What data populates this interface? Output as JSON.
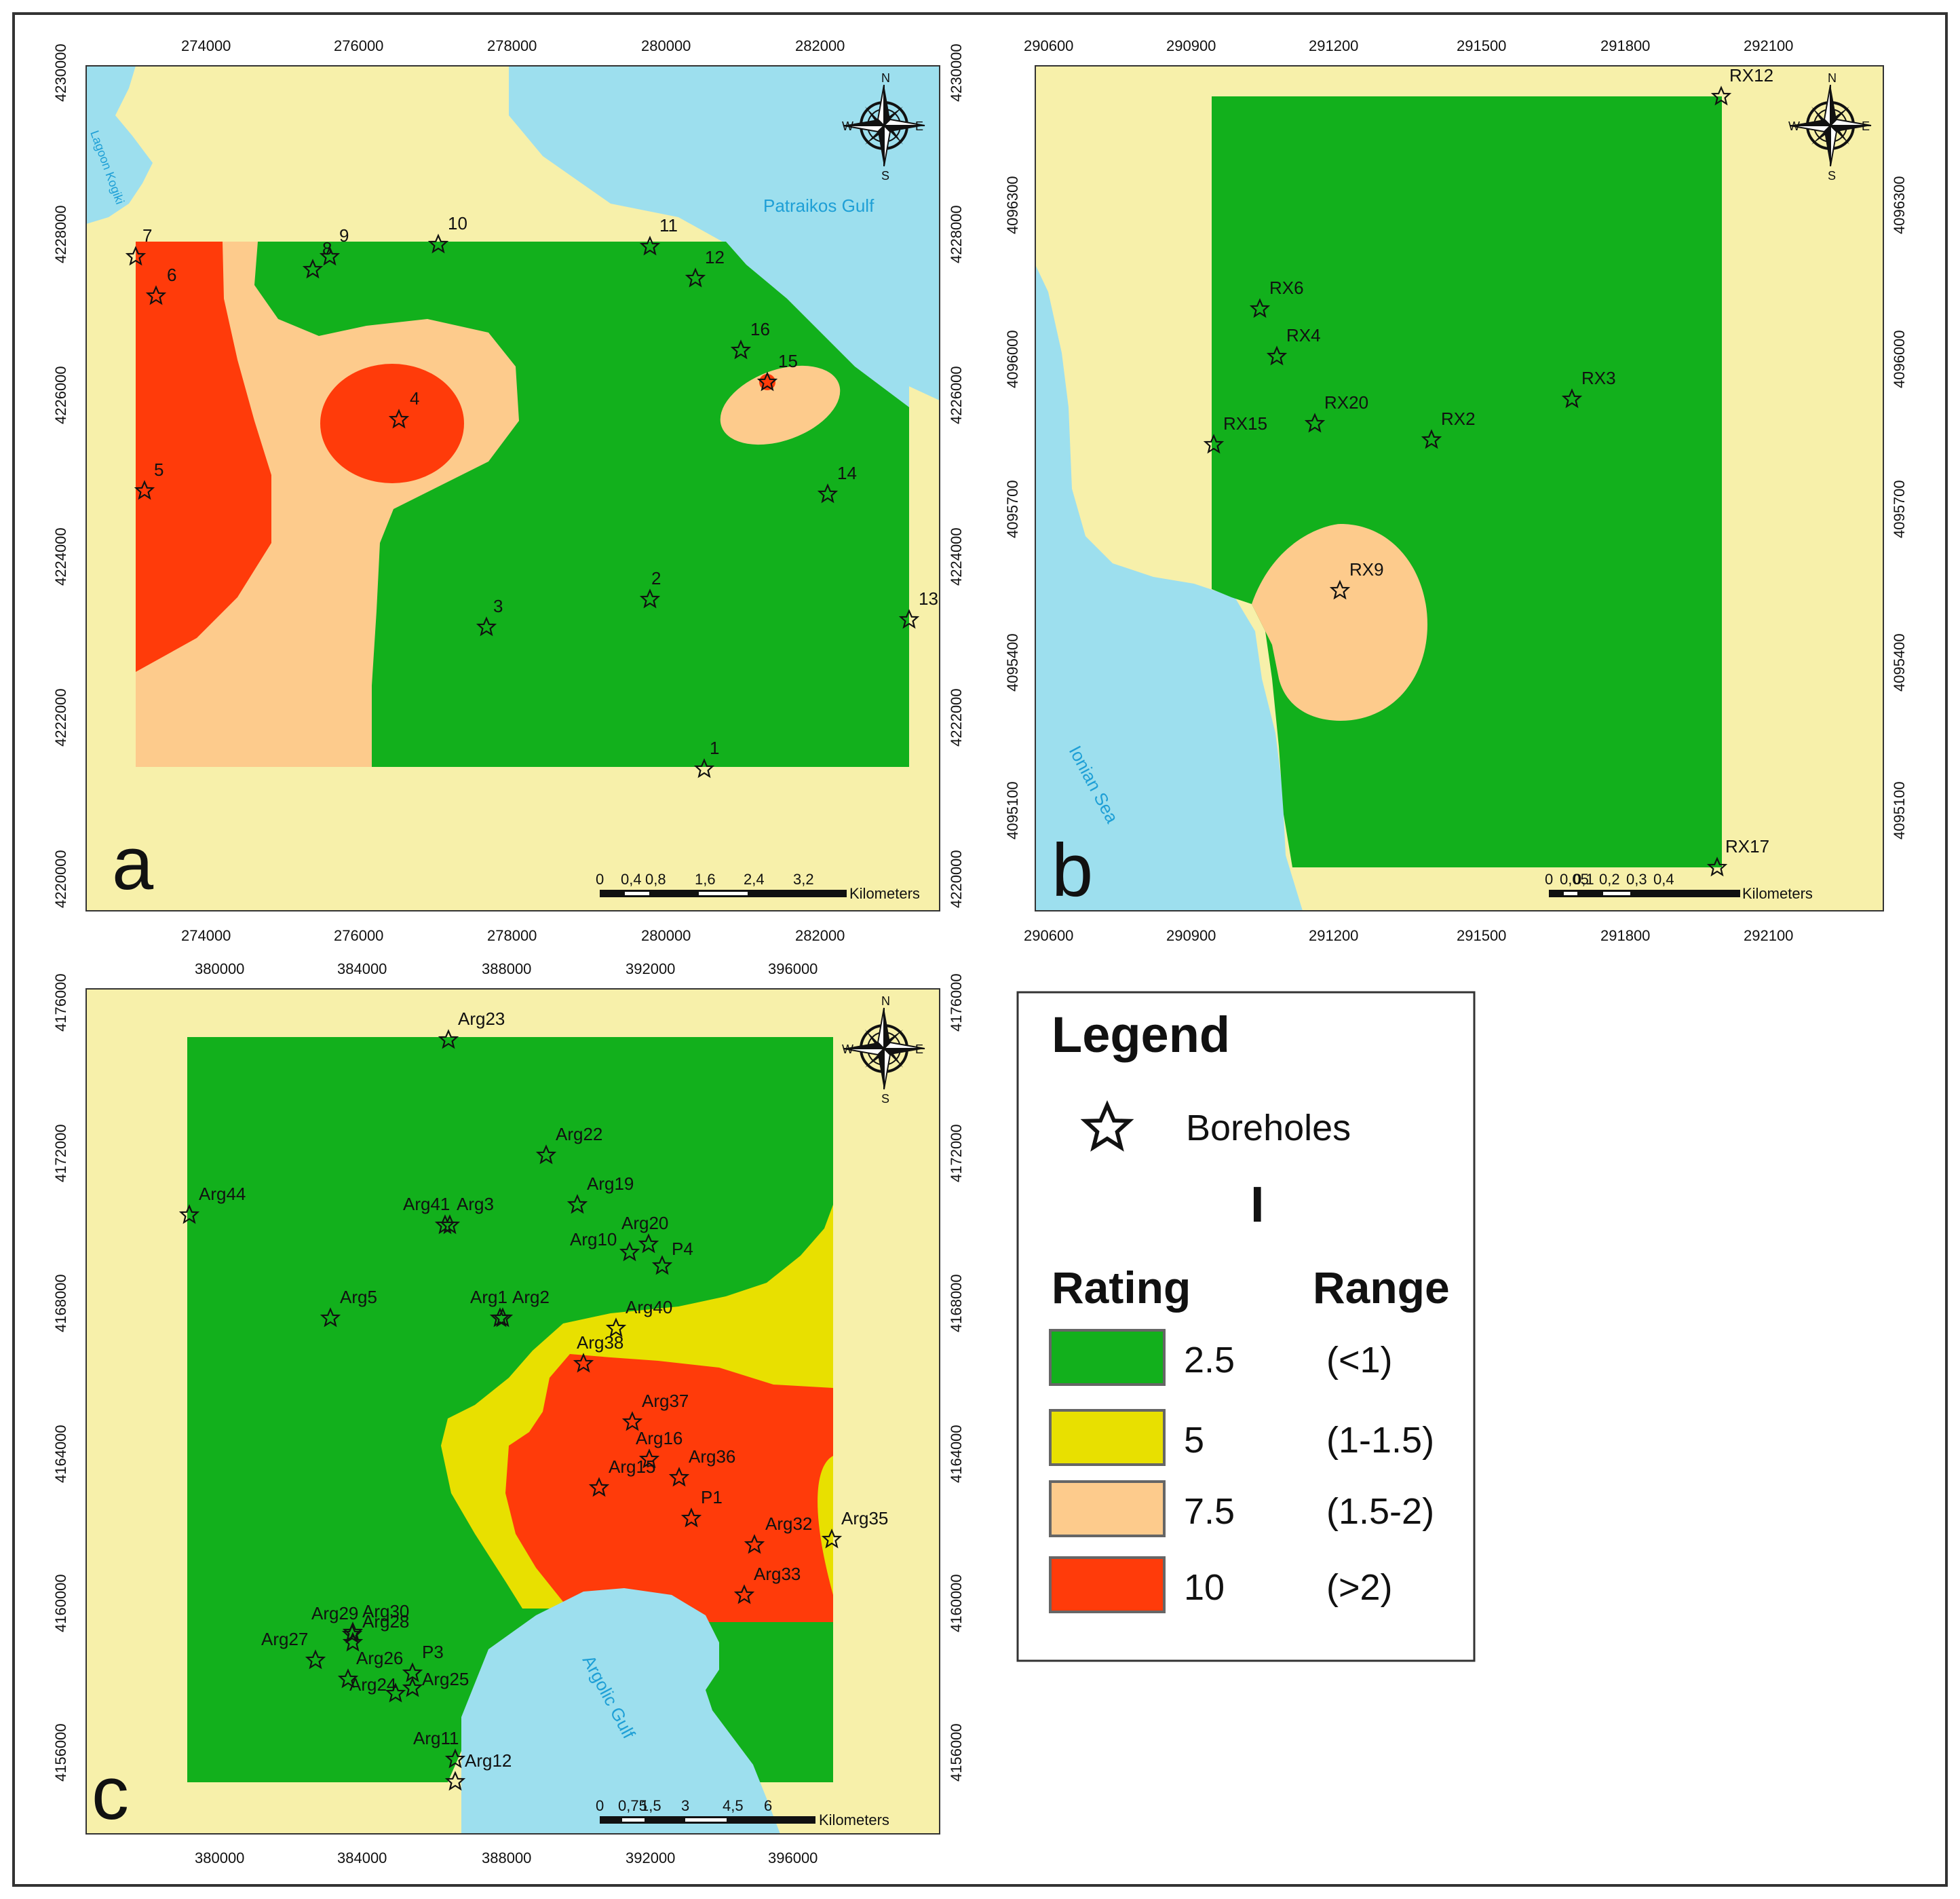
{
  "colors": {
    "land": "#f7f0aa",
    "water": "#9ddfee",
    "green": "#12b01c",
    "yellow": "#e8e000",
    "orange": "#fdcb8c",
    "red": "#ff3b0a",
    "water_label": "#1e9fd6"
  },
  "panels": {
    "a": {
      "letter": "a",
      "x_ticks": [
        "274000",
        "276000",
        "278000",
        "280000",
        "282000"
      ],
      "y_ticks": [
        "4220000",
        "4222000",
        "4224000",
        "4226000",
        "4228000",
        "4230000"
      ],
      "water_labels": [
        "Patraikos Gulf",
        "Lagoon Kogiki"
      ],
      "boreholes": [
        "1",
        "2",
        "3",
        "4",
        "5",
        "6",
        "7",
        "8",
        "9",
        "10",
        "11",
        "12",
        "13",
        "14",
        "15",
        "16"
      ],
      "scale_labels": [
        "0",
        "0,4",
        "0,8",
        "1,6",
        "2,4",
        "3,2"
      ],
      "scale_unit": "Kilometers",
      "compass": {
        "n": "N",
        "s": "S",
        "e": "E",
        "w": "W"
      }
    },
    "b": {
      "letter": "b",
      "x_ticks": [
        "290600",
        "290900",
        "291200",
        "291500",
        "291800",
        "292100"
      ],
      "y_ticks": [
        "4095100",
        "4095400",
        "4095700",
        "4096000",
        "4096300"
      ],
      "water_labels": [
        "Ionian Sea"
      ],
      "boreholes": [
        "RX12",
        "RX6",
        "RX4",
        "RX3",
        "RX20",
        "RX15",
        "RX2",
        "RX9",
        "RX17"
      ],
      "scale_labels": [
        "0",
        "0,05",
        "0,1",
        "0,2",
        "0,3",
        "0,4"
      ],
      "scale_unit": "Kilometers",
      "compass": {
        "n": "N",
        "s": "S",
        "e": "E",
        "w": "W"
      }
    },
    "c": {
      "letter": "c",
      "x_ticks": [
        "380000",
        "384000",
        "388000",
        "392000",
        "396000"
      ],
      "y_ticks": [
        "4156000",
        "4160000",
        "4164000",
        "4168000",
        "4172000",
        "4176000"
      ],
      "water_labels": [
        "Argolic Gulf"
      ],
      "boreholes": [
        "Arg23",
        "Arg22",
        "Arg44",
        "Arg19",
        "Arg41",
        "Arg3",
        "Arg10",
        "Arg20",
        "P4",
        "Arg5",
        "Arg1",
        "Arg2",
        "Arg40",
        "Arg38",
        "Arg37",
        "Arg16",
        "Arg36",
        "Arg15",
        "P1",
        "Arg32",
        "Arg35",
        "Arg33",
        "Arg29",
        "Arg30",
        "Arg27",
        "Arg28",
        "P3",
        "Arg26",
        "Arg24",
        "Arg25",
        "Arg11",
        "Arg12"
      ],
      "scale_labels": [
        "0",
        "0,75",
        "1,5",
        "3",
        "4,5",
        "6"
      ],
      "scale_unit": "Kilometers",
      "compass": {
        "n": "N",
        "s": "S",
        "e": "E",
        "w": "W"
      }
    }
  },
  "legend": {
    "title": "Legend",
    "borehole_label": "Boreholes",
    "index_label": "I",
    "rating_header": "Rating",
    "range_header": "Range",
    "classes": [
      {
        "rating": "2.5",
        "range": "(<1)",
        "color": "#12b01c"
      },
      {
        "rating": "5",
        "range": "(1-1.5)",
        "color": "#e8e000"
      },
      {
        "rating": "7.5",
        "range": "(1.5-2)",
        "color": "#fdcb8c"
      },
      {
        "rating": "10",
        "range": "(>2)",
        "color": "#ff3b0a"
      }
    ]
  }
}
